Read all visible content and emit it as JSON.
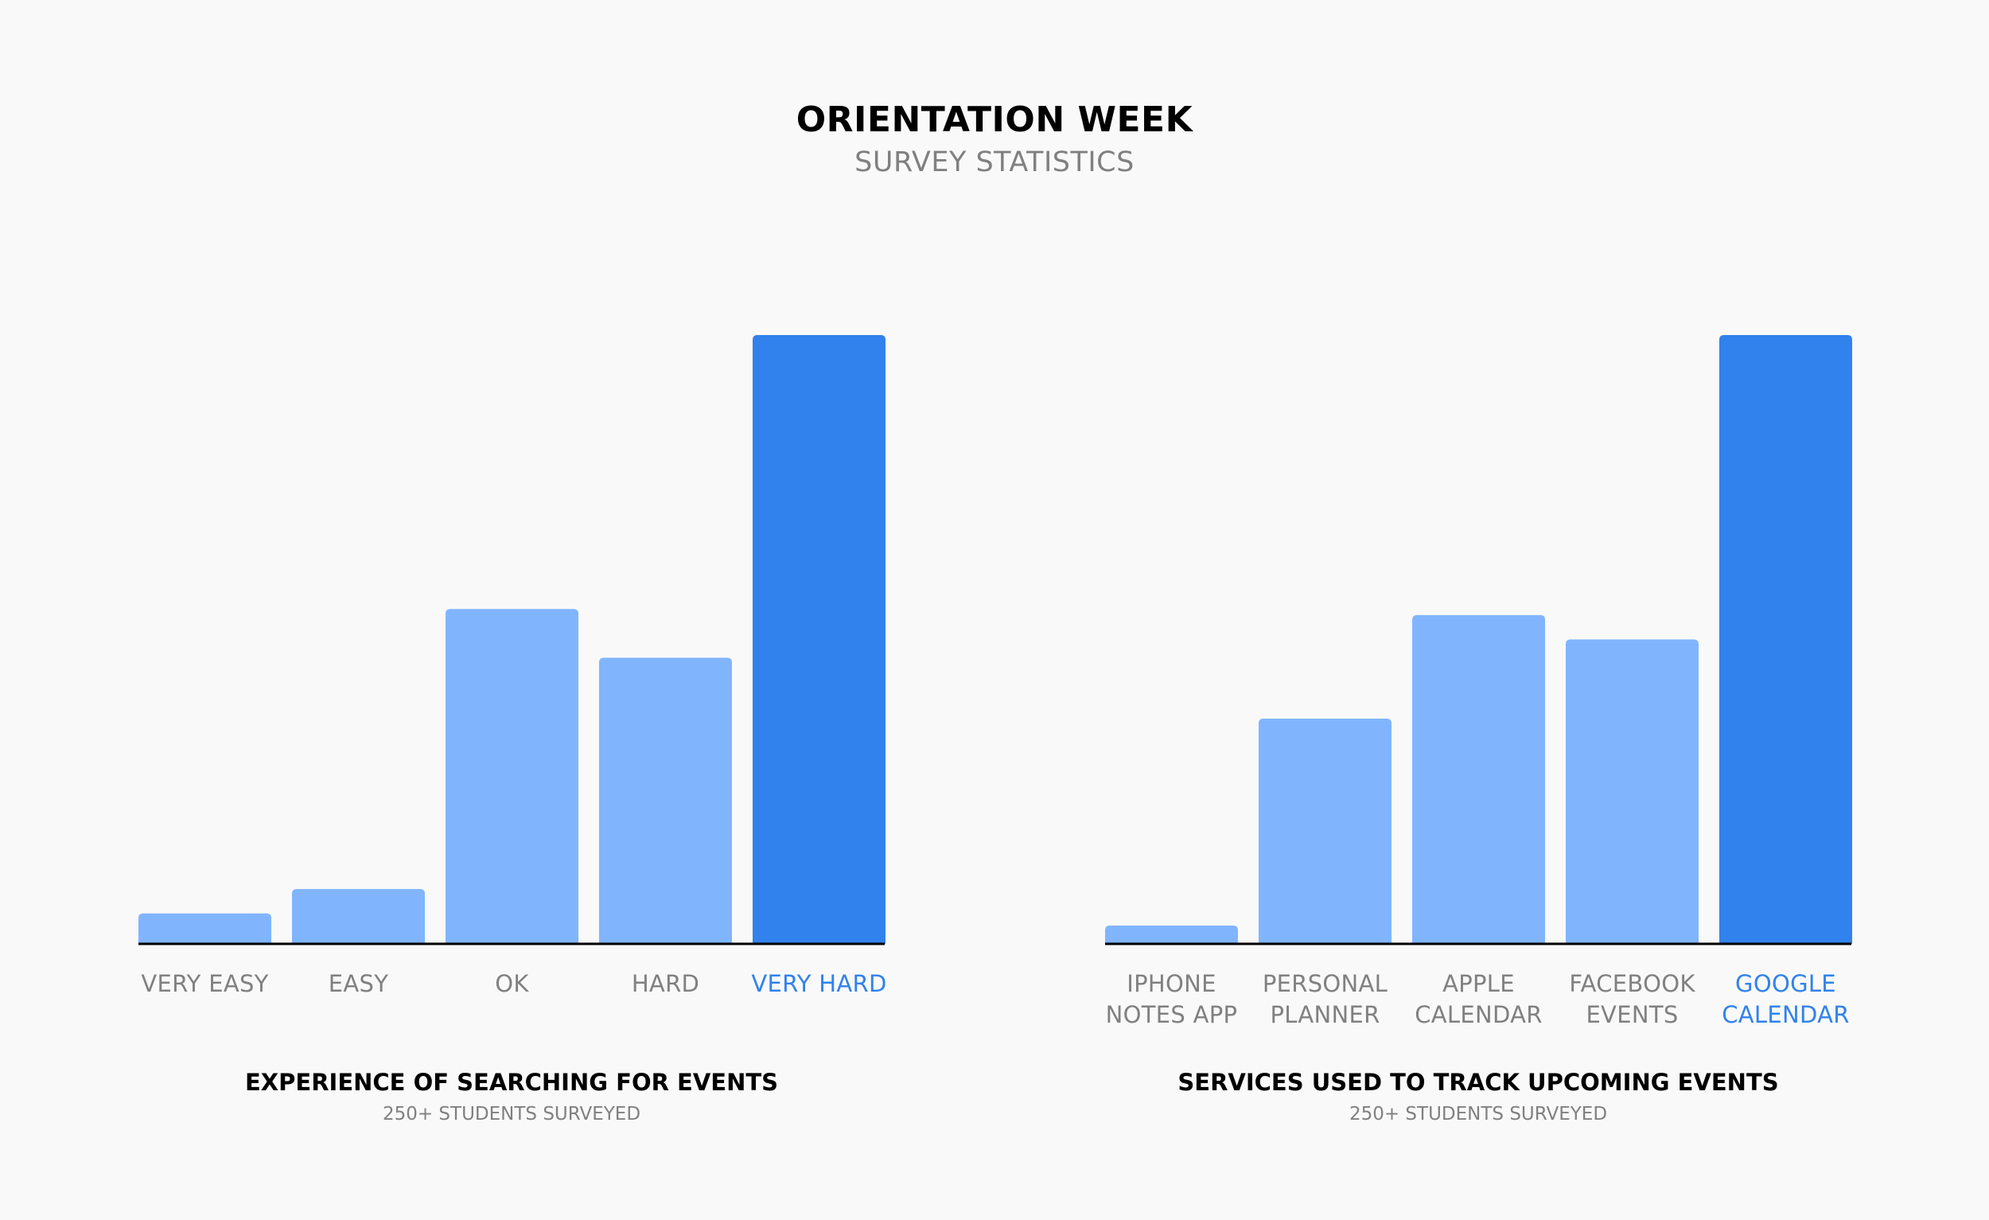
{
  "page": {
    "title": "ORIENTATION WEEK",
    "subtitle": "SURVEY STATISTICS"
  },
  "colors": {
    "background": "#f9f9f9",
    "bar": "#80b5fe",
    "highlight": "#3182ec",
    "axis": "#000000",
    "tick_label": "#808080",
    "highlight_label": "#3182ec"
  },
  "chart_data": [
    {
      "type": "bar",
      "title": "EXPERIENCE OF SEARCHING FOR EVENTS",
      "subtitle": "250+ STUDENTS SURVEYED",
      "categories": [
        "VERY EASY",
        "EASY",
        "OK",
        "HARD",
        "VERY HARD"
      ],
      "values": [
        5,
        9,
        55,
        47,
        100
      ],
      "highlight_index": 4,
      "ylim": [
        0,
        100
      ],
      "grid": false,
      "xlabel": "",
      "ylabel": ""
    },
    {
      "type": "bar",
      "title": "SERVICES USED TO TRACK UPCOMING EVENTS",
      "subtitle": "250+ STUDENTS SURVEYED",
      "categories": [
        "IPHONE NOTES APP",
        "PERSONAL PLANNER",
        "APPLE CALENDAR",
        "FACEBOOK EVENTS",
        "GOOGLE CALENDAR"
      ],
      "category_lines": [
        [
          "IPHONE",
          "NOTES APP"
        ],
        [
          "PERSONAL",
          "PLANNER"
        ],
        [
          "APPLE",
          "CALENDAR"
        ],
        [
          "FACEBOOK",
          "EVENTS"
        ],
        [
          "GOOGLE",
          "CALENDAR"
        ]
      ],
      "values": [
        3,
        37,
        54,
        50,
        100
      ],
      "highlight_index": 4,
      "ylim": [
        0,
        100
      ],
      "grid": false,
      "xlabel": "",
      "ylabel": ""
    }
  ]
}
